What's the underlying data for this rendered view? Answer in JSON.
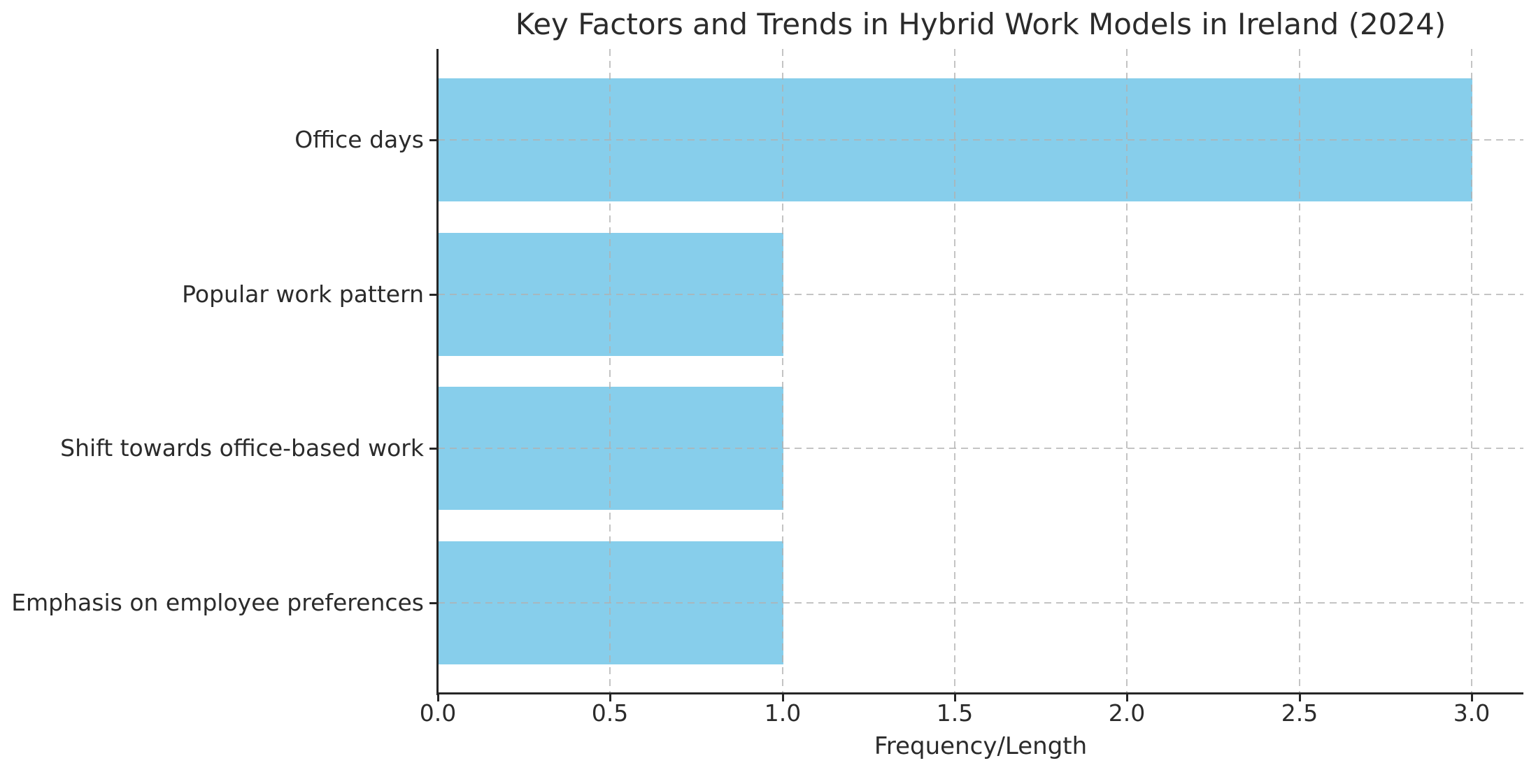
{
  "chart_data": {
    "type": "bar",
    "orientation": "horizontal",
    "title": "Key Factors and Trends in Hybrid Work Models in Ireland (2024)",
    "xlabel": "Frequency/Length",
    "categories": [
      "Office days",
      "Popular work pattern",
      "Shift towards office-based work",
      "Emphasis on employee preferences"
    ],
    "values": [
      3,
      1,
      1,
      1
    ],
    "xlim": [
      0,
      3.15
    ],
    "xtick_values": [
      0.0,
      0.5,
      1.0,
      1.5,
      2.0,
      2.5,
      3.0
    ],
    "xtick_labels": [
      "0.0",
      "0.5",
      "1.0",
      "1.5",
      "2.0",
      "2.5",
      "3.0"
    ],
    "bar_color": "#87CEEB",
    "grid": {
      "visible": true,
      "axis": "both",
      "style": "dashed",
      "color": "#b0b0b0"
    },
    "legend": false,
    "background": "#ffffff",
    "text_color": "#2b2b2b"
  }
}
